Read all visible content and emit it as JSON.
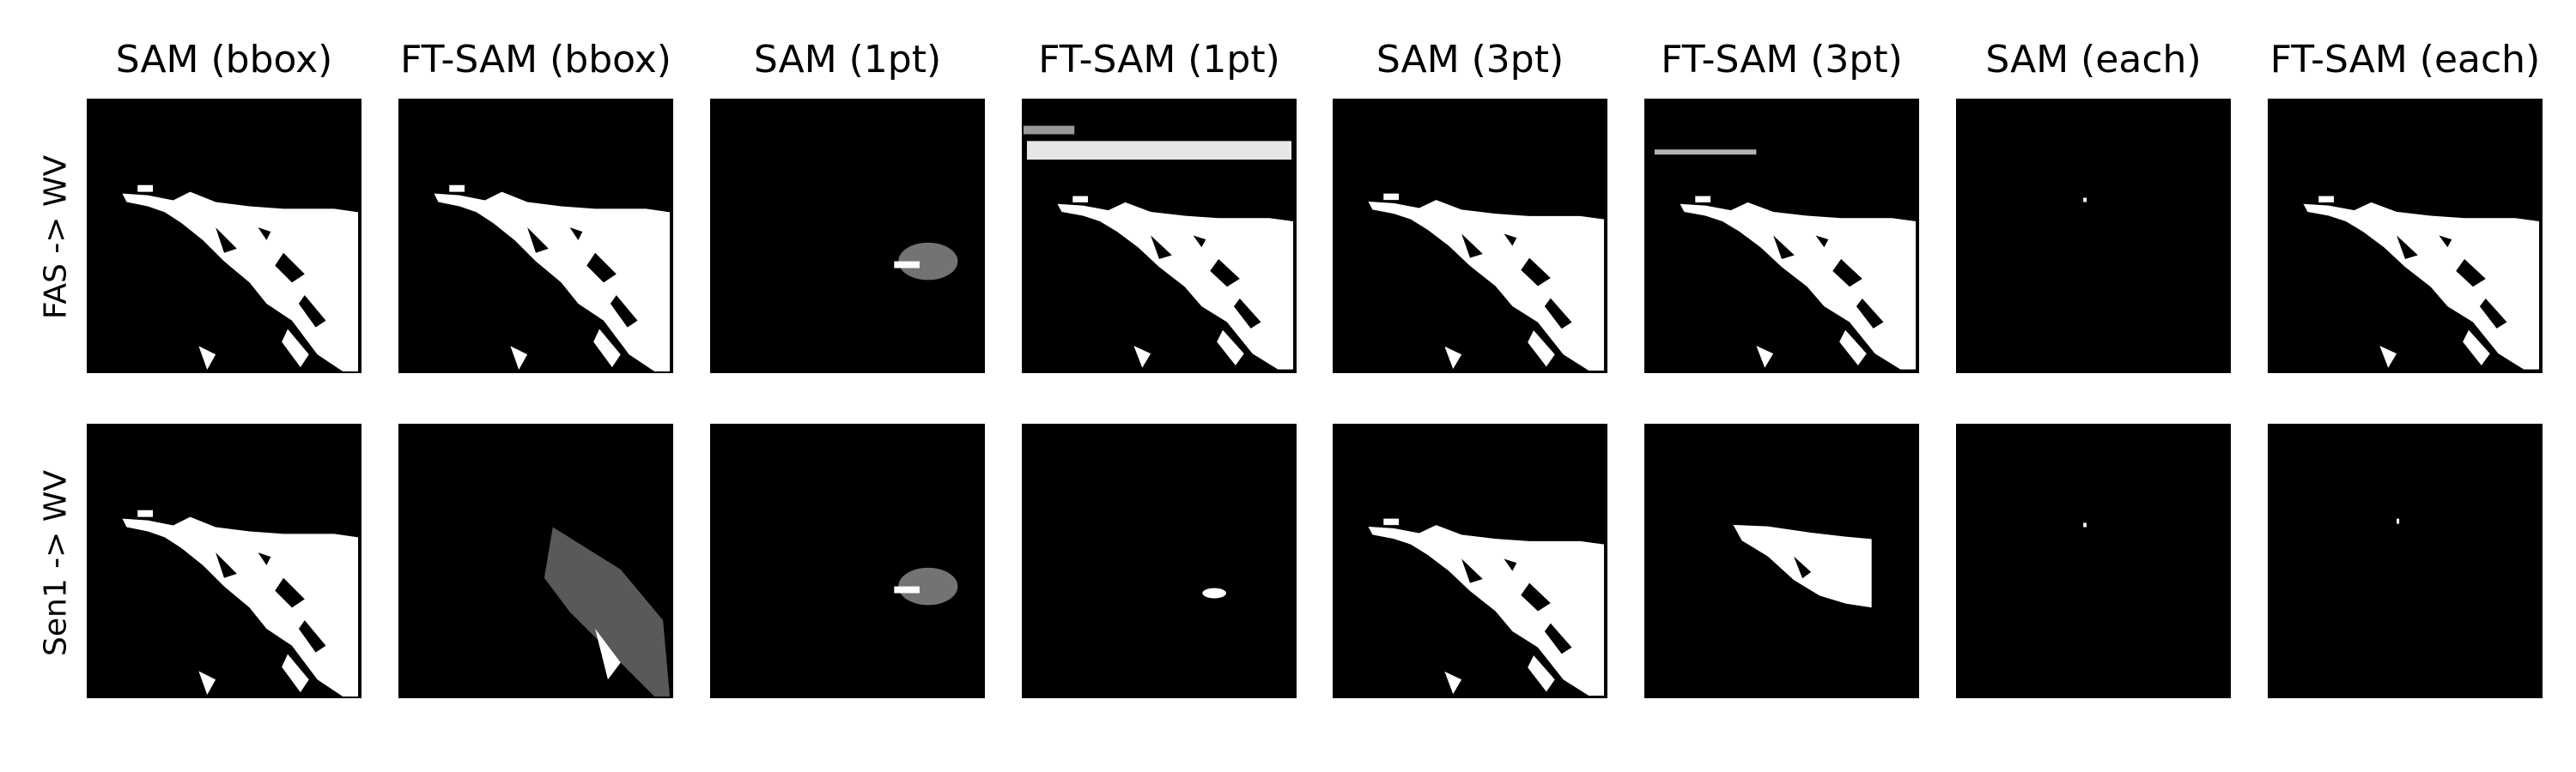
{
  "columns": [
    {
      "label": "SAM (bbox)",
      "image_name": "sam-bbox"
    },
    {
      "label": "FT-SAM (bbox)",
      "image_name": "ft-sam-bbox"
    },
    {
      "label": "SAM (1pt)",
      "image_name": "sam-1pt"
    },
    {
      "label": "FT-SAM (1pt)",
      "image_name": "ft-sam-1pt"
    },
    {
      "label": "SAM (3pt)",
      "image_name": "sam-3pt"
    },
    {
      "label": "FT-SAM (3pt)",
      "image_name": "ft-sam-3pt"
    },
    {
      "label": "SAM (each)",
      "image_name": "sam-each"
    },
    {
      "label": "FT-SAM (each)",
      "image_name": "ft-sam-each"
    }
  ],
  "rows": [
    {
      "label": "FAS -> WV",
      "masks": [
        "full-coast-a",
        "full-coast-b",
        "small-blob",
        "coast-with-top-noise",
        "full-coast-c",
        "coast-with-top-line",
        "single-dot",
        "full-coast-d"
      ]
    },
    {
      "label": "Sen1 -> WV",
      "masks": [
        "full-coast-a",
        "sparse-coast",
        "small-blob",
        "tiny-blob",
        "full-coast-c",
        "partial-coast",
        "single-dot",
        "single-dot-b"
      ]
    }
  ],
  "colors": {
    "mask": "#ffffff",
    "background": "#000000"
  }
}
